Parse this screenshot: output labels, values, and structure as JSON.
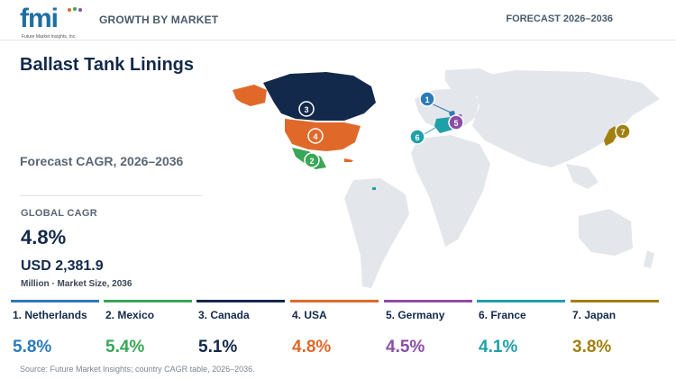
{
  "header": {
    "logo_text": "fmi",
    "logo_subtext": "Future Market Insights, Inc.",
    "left_label": "GROWTH BY MARKET",
    "right_label": "FORECAST 2026–2036"
  },
  "title": "Ballast Tank Linings",
  "subtitle": "Forecast CAGR, 2026–2036",
  "summary": {
    "global_label": "GLOBAL CAGR",
    "global_value": "4.8%",
    "market_size": "USD 2,381.9",
    "market_size_label": "Million · Market Size, 2036"
  },
  "countries": [
    {
      "rank": "1",
      "label": "1. Netherlands",
      "cagr": "5.8%",
      "color": "#2b7bb9"
    },
    {
      "rank": "2",
      "label": "2. Mexico",
      "cagr": "5.4%",
      "color": "#3aa657"
    },
    {
      "rank": "3",
      "label": "3. Canada",
      "cagr": "5.1%",
      "color": "#13294b"
    },
    {
      "rank": "4",
      "label": "4. USA",
      "cagr": "4.8%",
      "color": "#e0692a"
    },
    {
      "rank": "5",
      "label": "5. Germany",
      "cagr": "4.5%",
      "color": "#8b4ea6"
    },
    {
      "rank": "6",
      "label": "6. France",
      "cagr": "4.1%",
      "color": "#1fa0a8"
    },
    {
      "rank": "7",
      "label": "7. Japan",
      "cagr": "3.8%",
      "color": "#a0800f"
    }
  ],
  "source": "Source: Future Market Insights; country CAGR table, 2026–2036."
}
